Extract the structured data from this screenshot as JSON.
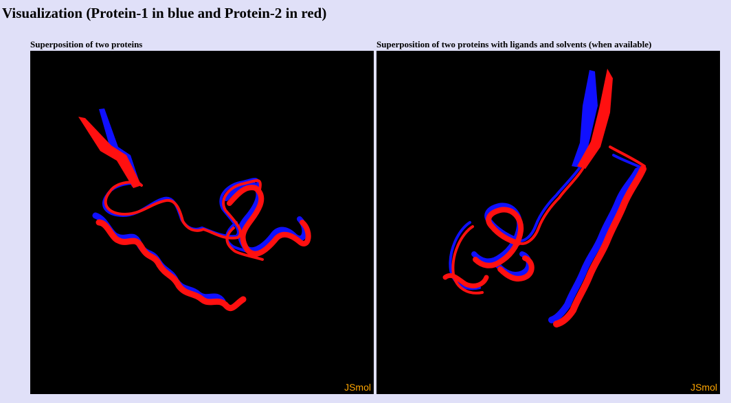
{
  "page": {
    "title": "Visualization (Protein-1 in blue and Protein-2 in red)"
  },
  "panels": [
    {
      "caption": "Superposition of two proteins",
      "logo": "JSmol"
    },
    {
      "caption": "Superposition of two proteins with ligands and solvents (when available)",
      "logo": "JSmol"
    }
  ],
  "colors": {
    "page_background": "#e0e0f8",
    "viewer_background": "#000000",
    "protein_1": "#1010ff",
    "protein_2": "#ff1010",
    "logo": "#ffa500"
  }
}
